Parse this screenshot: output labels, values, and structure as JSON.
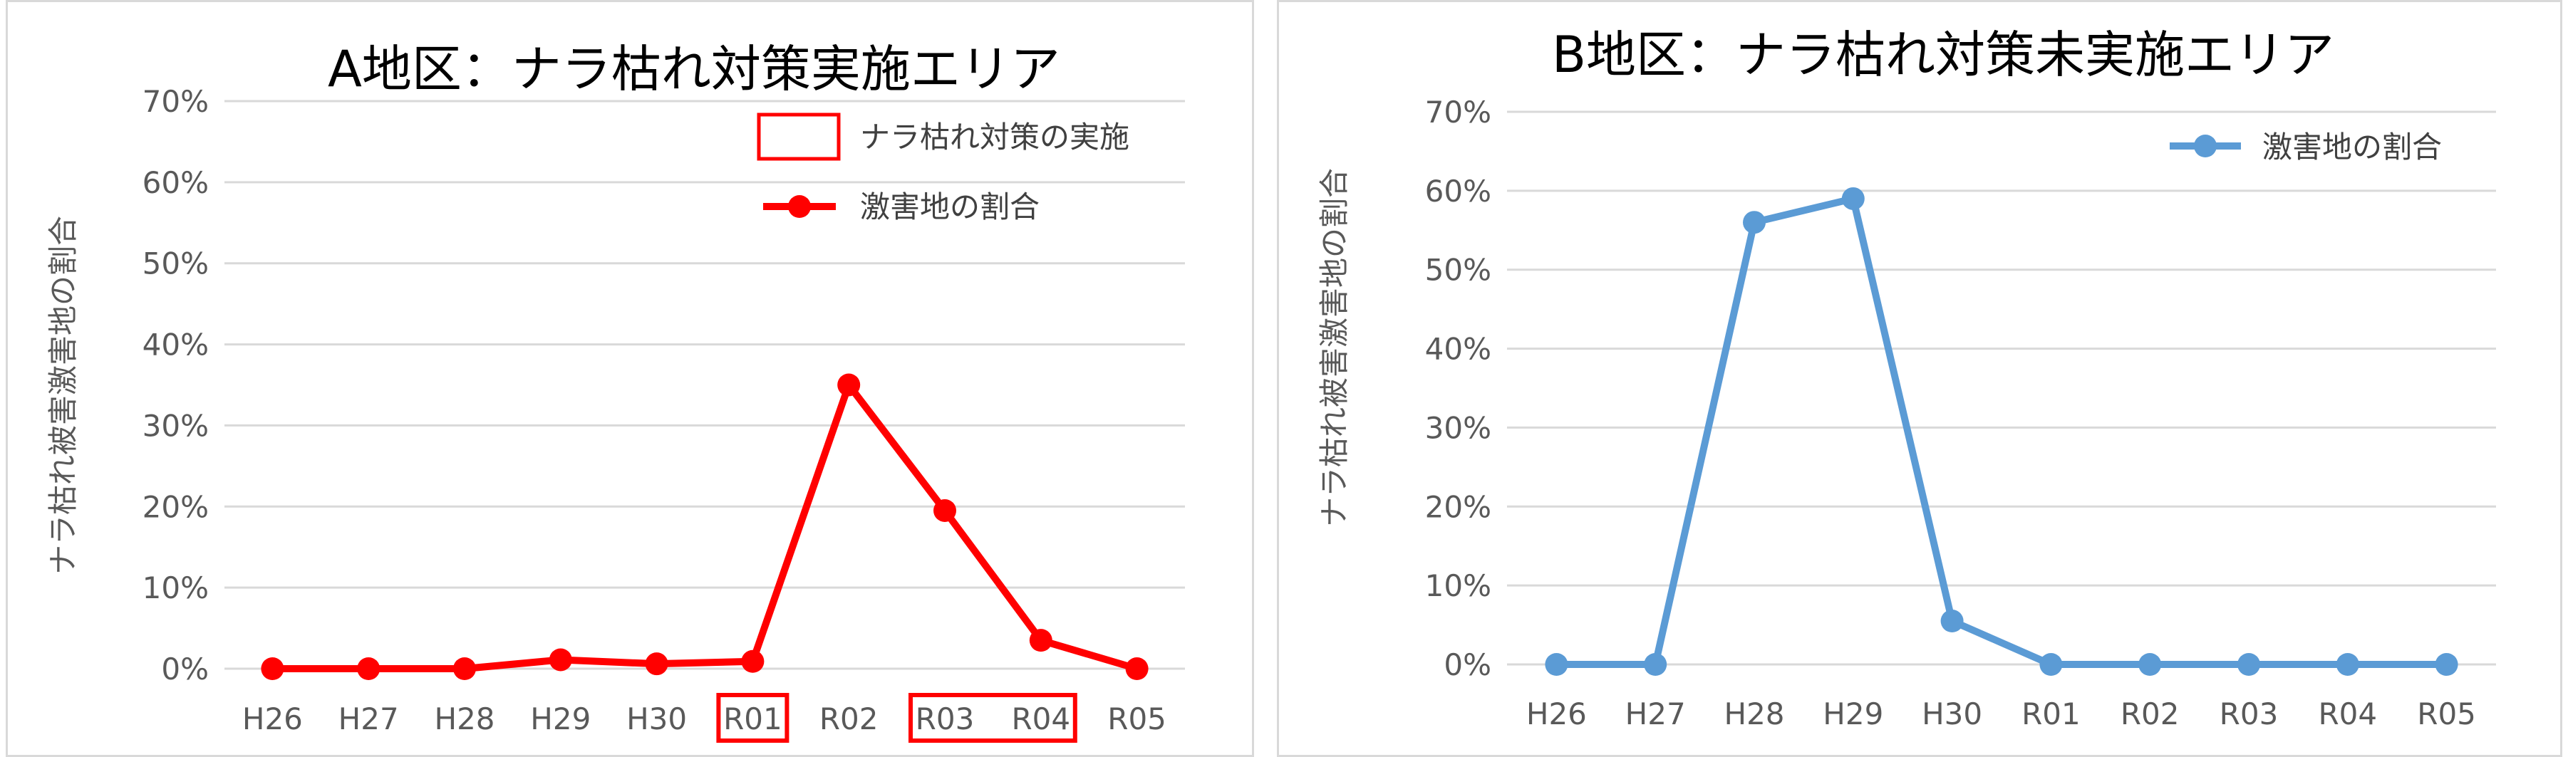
{
  "colors": {
    "series_a": "#ff0000",
    "series_b": "#5b9bd5",
    "highlight_box": "#ff0000",
    "gridline": "#d9d9d9",
    "tick_text": "#595959",
    "panel_border": "#d9d9d9"
  },
  "chart_data": [
    {
      "type": "line",
      "title": "A地区：ナラ枯れ対策実施エリア",
      "ylabel": "ナラ枯れ被害激害地の割合",
      "xlabel": "",
      "ylim": [
        0,
        70
      ],
      "yticks": [
        "0%",
        "10%",
        "20%",
        "30%",
        "40%",
        "50%",
        "60%",
        "70%"
      ],
      "grid": true,
      "legend_position": "top-right",
      "categories": [
        "H26",
        "H27",
        "H28",
        "H29",
        "H30",
        "R01",
        "R02",
        "R03",
        "R04",
        "R05"
      ],
      "series": [
        {
          "name": "激害地の割合",
          "color": "#ff0000",
          "values": [
            0,
            0,
            0,
            1.1,
            0.6,
            0.9,
            35,
            19.5,
            3.5,
            0
          ]
        }
      ],
      "annotation": {
        "legend_label": "ナラ枯れ対策の実施",
        "highlighted_categories": [
          [
            "R01"
          ],
          [
            "R03",
            "R04"
          ]
        ]
      }
    },
    {
      "type": "line",
      "title": "B地区：ナラ枯れ対策未実施エリア",
      "ylabel": "ナラ枯れ被害激害地の割合",
      "xlabel": "",
      "ylim": [
        0,
        70
      ],
      "yticks": [
        "0%",
        "10%",
        "20%",
        "30%",
        "40%",
        "50%",
        "60%",
        "70%"
      ],
      "grid": true,
      "legend_position": "top-right",
      "categories": [
        "H26",
        "H27",
        "H28",
        "H29",
        "H30",
        "R01",
        "R02",
        "R03",
        "R04",
        "R05"
      ],
      "series": [
        {
          "name": "激害地の割合",
          "color": "#5b9bd5",
          "values": [
            0,
            0,
            56,
            59,
            5.5,
            0,
            0,
            0,
            0,
            0
          ]
        }
      ]
    }
  ]
}
